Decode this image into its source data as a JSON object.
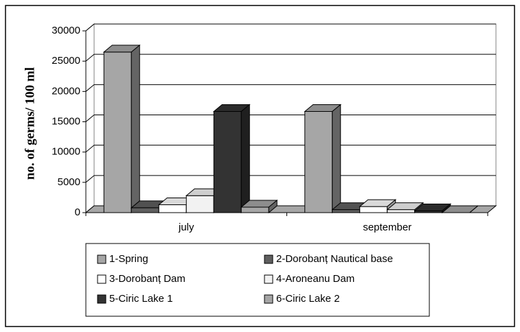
{
  "chart_data": {
    "type": "bar",
    "y_label": "no. of germs/ 100 ml",
    "categories": [
      "july",
      "september"
    ],
    "series": [
      {
        "name": "1-Spring",
        "color": "#a6a6a6",
        "values": [
          26500,
          16700
        ]
      },
      {
        "name": "2-Dorobanț Nautical base",
        "color": "#5f5f5f",
        "values": [
          800,
          500
        ]
      },
      {
        "name": "3-Dorobanț Dam",
        "color": "#ffffff",
        "values": [
          1300,
          1000
        ]
      },
      {
        "name": "4-Aroneanu Dam",
        "color": "#f2f2f2",
        "values": [
          2800,
          500
        ]
      },
      {
        "name": "5-Ciric Lake 1",
        "color": "#333333",
        "values": [
          16700,
          300
        ]
      },
      {
        "name": "6-Ciric Lake 2",
        "color": "#a6a6a6",
        "values": [
          900,
          0
        ]
      }
    ],
    "ylim": [
      0,
      30000
    ],
    "yticks": [
      0,
      5000,
      10000,
      15000,
      20000,
      25000,
      30000
    ],
    "grid": true
  }
}
